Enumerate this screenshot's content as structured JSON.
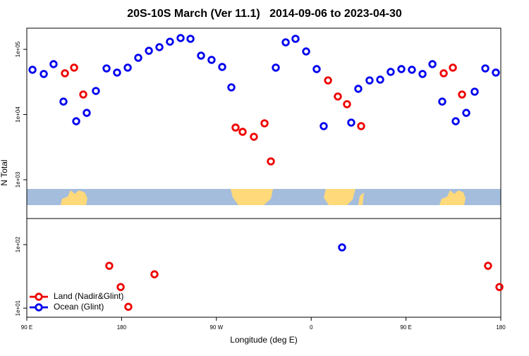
{
  "chart_data": [
    {
      "type": "scatter",
      "title": "20S-10S March (Ver 11.1)   2014-09-06 to 2023-04-30",
      "ylabel": "N Total",
      "yscale": "log",
      "xlim": [
        90,
        540
      ],
      "ylim": [
        254,
        211000
      ],
      "yticks": [
        {
          "value": 1000,
          "label": "1e+03"
        },
        {
          "value": 10000,
          "label": "1e+04"
        },
        {
          "value": 100000,
          "label": "1e+05"
        }
      ],
      "series": [
        {
          "color": "#0000ee",
          "x": [
            95.4,
            106.1,
            115.4,
            124.8,
            136.9,
            146.9,
            155.6,
            165.7,
            175.7,
            185.8,
            195.8,
            205.9,
            215.9,
            225.9,
            236,
            245.4,
            255.4,
            265.4,
            275.5,
            284.2,
            326.4,
            335.8,
            345.1,
            355.2,
            365.2,
            371.9,
            398,
            404.7,
            415.4,
            425.5,
            435.5,
            445.6,
            455.6,
            465.7,
            475.1,
            484.4,
            497.2,
            507.2,
            515.2,
            525.3,
            535.3
          ],
          "values": [
            48600,
            41900,
            59300,
            15800,
            7890,
            10600,
            23000,
            51000,
            44000,
            52400,
            74200,
            95000,
            108000,
            131000,
            149000,
            145000,
            80000,
            68900,
            53700,
            26100,
            52400,
            128000,
            145000,
            92800,
            49800,
            6640,
            7520,
            24800,
            33400,
            34300,
            45100,
            49800,
            48600,
            41900,
            59300,
            15800,
            7890,
            10600,
            22400,
            51000,
            44000
          ]
        },
        {
          "color": "#ee0000",
          "x": [
            126.2,
            134.9,
            143.6,
            288.2,
            294.9,
            305.6,
            315.7,
            321.7,
            376,
            385.3,
            394,
            407.4,
            485.8,
            494.5,
            503.2
          ],
          "values": [
            42900,
            52400,
            20300,
            6310,
            5430,
            4560,
            7330,
            1910,
            33400,
            18900,
            14400,
            6640,
            42900,
            52400,
            20300
          ]
        }
      ]
    },
    {
      "type": "scatter",
      "xlabel": "Longitude (deg E)",
      "yscale": "log",
      "legend": "lower left",
      "xlim": [
        90,
        540
      ],
      "ylim": [
        7.2,
        257
      ],
      "xticks": [
        {
          "value": 90,
          "label": "90 E"
        },
        180,
        {
          "value": 270,
          "label": "90 W"
        },
        0,
        {
          "value": 450,
          "label": "90 E"
        },
        {
          "value": 540,
          "label": "180"
        }
      ],
      "yticks": [
        {
          "value": 10,
          "label": "1e+01"
        },
        {
          "value": 100,
          "label": "1e+02"
        }
      ],
      "series": [
        {
          "name": "Land (Nadir&Glint)",
          "color": "#ee0000",
          "x": [
            168.3,
            179.1,
            186.4,
            211.2,
            527.9,
            538.7
          ],
          "values": [
            46.4,
            21.5,
            10.5,
            34.1,
            46.4,
            21.5
          ]
        },
        {
          "name": "Ocean (Glint)",
          "color": "#0000ee",
          "x": [
            389.3
          ],
          "values": [
            90.3
          ]
        }
      ]
    }
  ]
}
